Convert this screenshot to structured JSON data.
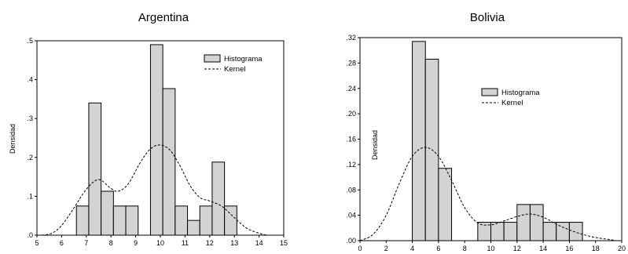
{
  "chart_data": [
    {
      "type": "bar",
      "title": "Argentina",
      "ylabel": "Densidad",
      "xlim": [
        5,
        15
      ],
      "ylim": [
        0,
        0.5
      ],
      "xticks": [
        5,
        6,
        7,
        8,
        9,
        10,
        11,
        12,
        13,
        14,
        15
      ],
      "xtick_labels": [
        "5",
        "6",
        "7",
        "8",
        "9",
        "10",
        "11",
        "12",
        "13",
        "14",
        "15"
      ],
      "yticks": [
        0,
        0.1,
        0.2,
        0.3,
        0.4,
        0.5
      ],
      "ytick_labels": [
        ".0",
        ".1",
        ".2",
        ".3",
        ".4",
        ".5"
      ],
      "legend": {
        "position": "top-right",
        "histogram_label": "Histograma",
        "kernel_label": "Kernel"
      },
      "bins": [
        {
          "x0": 6.6,
          "x1": 7.1,
          "density": 0.075
        },
        {
          "x0": 7.1,
          "x1": 7.6,
          "density": 0.34
        },
        {
          "x0": 7.6,
          "x1": 8.1,
          "density": 0.113
        },
        {
          "x0": 8.1,
          "x1": 8.6,
          "density": 0.075
        },
        {
          "x0": 8.6,
          "x1": 9.1,
          "density": 0.075
        },
        {
          "x0": 9.6,
          "x1": 10.1,
          "density": 0.49
        },
        {
          "x0": 10.1,
          "x1": 10.6,
          "density": 0.377
        },
        {
          "x0": 10.6,
          "x1": 11.1,
          "density": 0.075
        },
        {
          "x0": 11.1,
          "x1": 11.6,
          "density": 0.038
        },
        {
          "x0": 11.6,
          "x1": 12.1,
          "density": 0.075
        },
        {
          "x0": 12.1,
          "x1": 12.6,
          "density": 0.188
        },
        {
          "x0": 12.6,
          "x1": 13.1,
          "density": 0.075
        }
      ],
      "kernel": [
        [
          5.2,
          0.0
        ],
        [
          5.6,
          0.005
        ],
        [
          6.0,
          0.025
        ],
        [
          6.5,
          0.07
        ],
        [
          7.0,
          0.118
        ],
        [
          7.5,
          0.143
        ],
        [
          8.0,
          0.12
        ],
        [
          8.3,
          0.113
        ],
        [
          8.7,
          0.132
        ],
        [
          9.2,
          0.188
        ],
        [
          9.6,
          0.222
        ],
        [
          10.0,
          0.232
        ],
        [
          10.4,
          0.218
        ],
        [
          10.8,
          0.178
        ],
        [
          11.2,
          0.128
        ],
        [
          11.6,
          0.097
        ],
        [
          12.0,
          0.088
        ],
        [
          12.5,
          0.074
        ],
        [
          13.0,
          0.045
        ],
        [
          13.5,
          0.018
        ],
        [
          14.0,
          0.005
        ],
        [
          14.3,
          0.0
        ]
      ]
    },
    {
      "type": "bar",
      "title": "Bolivia",
      "ylabel": "Densidad",
      "xlim": [
        0,
        20
      ],
      "ylim": [
        0,
        0.32
      ],
      "xticks": [
        0,
        2,
        4,
        6,
        8,
        10,
        12,
        14,
        16,
        18,
        20
      ],
      "xtick_labels": [
        "0",
        "2",
        "4",
        "6",
        "8",
        "10",
        "12",
        "14",
        "16",
        "18",
        "20"
      ],
      "yticks": [
        0,
        0.04,
        0.08,
        0.12,
        0.16,
        0.2,
        0.24,
        0.28,
        0.32
      ],
      "ytick_labels": [
        ".00",
        ".04",
        ".08",
        ".12",
        ".16",
        ".20",
        ".24",
        ".28",
        ".32"
      ],
      "legend": {
        "position": "center",
        "histogram_label": "Histograma",
        "kernel_label": "Kernel"
      },
      "bins": [
        {
          "x0": 4.0,
          "x1": 5.0,
          "density": 0.314
        },
        {
          "x0": 5.0,
          "x1": 6.0,
          "density": 0.286
        },
        {
          "x0": 6.0,
          "x1": 7.0,
          "density": 0.114
        },
        {
          "x0": 9.0,
          "x1": 10.0,
          "density": 0.029
        },
        {
          "x0": 10.0,
          "x1": 11.0,
          "density": 0.029
        },
        {
          "x0": 11.0,
          "x1": 12.0,
          "density": 0.029
        },
        {
          "x0": 12.0,
          "x1": 13.0,
          "density": 0.057
        },
        {
          "x0": 13.0,
          "x1": 14.0,
          "density": 0.057
        },
        {
          "x0": 14.0,
          "x1": 15.0,
          "density": 0.029
        },
        {
          "x0": 15.0,
          "x1": 16.0,
          "density": 0.029
        },
        {
          "x0": 16.0,
          "x1": 17.0,
          "density": 0.029
        }
      ],
      "kernel": [
        [
          0.0,
          0.0
        ],
        [
          1.0,
          0.01
        ],
        [
          2.0,
          0.04
        ],
        [
          3.0,
          0.09
        ],
        [
          4.0,
          0.133
        ],
        [
          5.0,
          0.147
        ],
        [
          6.0,
          0.133
        ],
        [
          7.0,
          0.095
        ],
        [
          8.0,
          0.052
        ],
        [
          9.0,
          0.028
        ],
        [
          10.0,
          0.025
        ],
        [
          11.0,
          0.031
        ],
        [
          12.0,
          0.038
        ],
        [
          13.0,
          0.042
        ],
        [
          14.0,
          0.037
        ],
        [
          15.0,
          0.026
        ],
        [
          16.0,
          0.017
        ],
        [
          17.0,
          0.01
        ],
        [
          18.0,
          0.005
        ],
        [
          19.0,
          0.002
        ],
        [
          19.6,
          0.0
        ]
      ]
    }
  ]
}
